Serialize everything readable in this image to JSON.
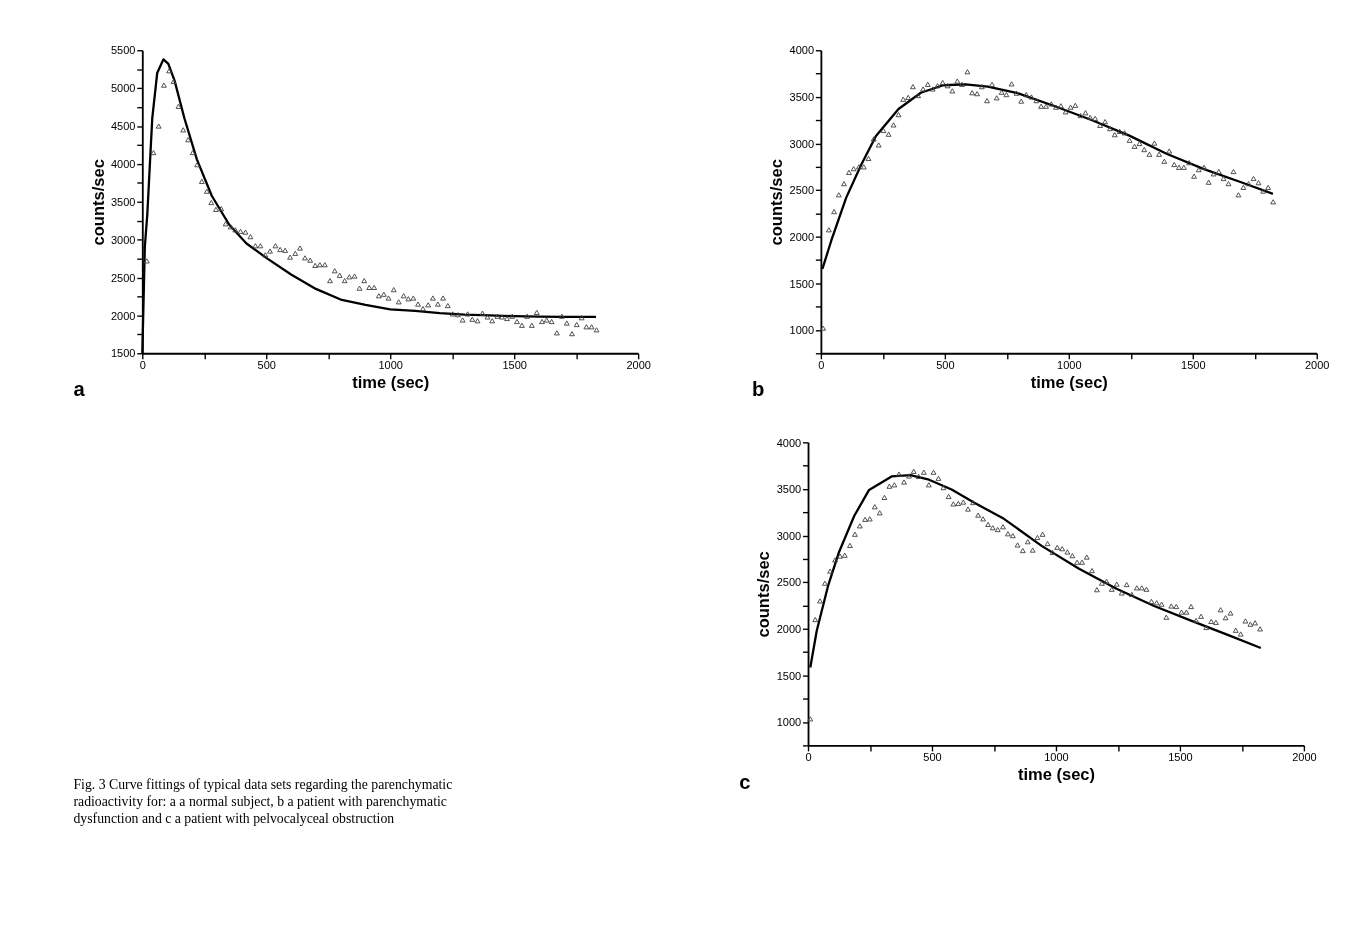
{
  "chart_data": [
    {
      "type": "scatter",
      "xlabel": "time (sec)",
      "ylabel": "counts/sec",
      "annotations": [
        "a"
      ],
      "xlim": [
        0,
        2000
      ],
      "ylim": [
        1500,
        5500
      ],
      "xticks": [
        0,
        {
          "value": 250,
          "label": null
        },
        500,
        {
          "value": 750,
          "label": null
        },
        1000,
        {
          "value": 1250,
          "label": null
        },
        1500,
        {
          "value": 1750,
          "label": null
        },
        2000
      ],
      "yticks": [
        1500,
        {
          "value": 1750,
          "label": null
        },
        2000,
        {
          "value": 2250,
          "label": null
        },
        2500,
        {
          "value": 2750,
          "label": null
        },
        3000,
        {
          "value": 3250,
          "label": null
        },
        3500,
        {
          "value": 3750,
          "label": null
        },
        4000,
        {
          "value": 4250,
          "label": null
        },
        4500,
        {
          "value": 4750,
          "label": null
        },
        5000,
        {
          "value": 5250,
          "label": null
        },
        5500
      ],
      "grid": false,
      "series": [
        {
          "type": "scatter",
          "marker": "triangle",
          "color": "#444444",
          "x": [
            18,
            45,
            66,
            87,
            108,
            126,
            146,
            165,
            185,
            203,
            221,
            240,
            260,
            278,
            297,
            318,
            336,
            356,
            375,
            396,
            416,
            436,
            456,
            476,
            496,
            515,
            537,
            556,
            576,
            596,
            617,
            636,
            656,
            677,
            697,
            716,
            736,
            757,
            776,
            796,
            816,
            835,
            856,
            876,
            895,
            915,
            935,
            954,
            974,
            993,
            1014,
            1034,
            1054,
            1073,
            1093,
            1112,
            1132,
            1153,
            1172,
            1192,
            1213,
            1232,
            1252,
            1273,
            1292,
            1312,
            1331,
            1352,
            1372,
            1392,
            1411,
            1432,
            1451,
            1471,
            1492,
            1511,
            1531,
            1552,
            1571,
            1591,
            1612,
            1631,
            1651,
            1672,
            1692,
            1712,
            1733,
            1752,
            1772,
            1791,
            1812,
            1832
          ],
          "values": [
            2720,
            4150,
            4500,
            5040,
            5230,
            5090,
            4760,
            4450,
            4320,
            4150,
            3990,
            3770,
            3640,
            3490,
            3400,
            3410,
            3210,
            3170,
            3130,
            3110,
            3100,
            3040,
            2920,
            2920,
            2800,
            2850,
            2920,
            2870,
            2860,
            2770,
            2820,
            2890,
            2760,
            2730,
            2660,
            2670,
            2670,
            2460,
            2590,
            2530,
            2460,
            2510,
            2520,
            2360,
            2460,
            2370,
            2370,
            2260,
            2280,
            2230,
            2340,
            2180,
            2260,
            2220,
            2230,
            2150,
            2090,
            2140,
            2230,
            2150,
            2230,
            2130,
            2020,
            2010,
            1940,
            2020,
            1950,
            1930,
            2030,
            1980,
            1930,
            1990,
            1980,
            1960,
            1990,
            1920,
            1870,
            1990,
            1870,
            2040,
            1920,
            1940,
            1920,
            1770,
            1990,
            1900,
            1760,
            1880,
            1970,
            1850,
            1850,
            1810
          ]
        },
        {
          "type": "line",
          "marker": "none",
          "line_style": "solid",
          "color": "#000000",
          "x": [
            0,
            10,
            20,
            40,
            60,
            85,
            105,
            130,
            170,
            220,
            280,
            350,
            420,
            500,
            600,
            700,
            800,
            900,
            1000,
            1100,
            1200,
            1300,
            1400,
            1500,
            1600,
            1700,
            1830
          ],
          "values": [
            1500,
            2900,
            3330,
            4600,
            5200,
            5380,
            5320,
            5100,
            4600,
            4060,
            3580,
            3200,
            2950,
            2760,
            2540,
            2350,
            2210,
            2140,
            2080,
            2060,
            2030,
            2010,
            2000,
            1990,
            1985,
            1980,
            1980
          ]
        }
      ]
    },
    {
      "type": "scatter",
      "xlabel": "time (sec)",
      "ylabel": "counts/sec",
      "annotations": [
        "b"
      ],
      "xlim": [
        0,
        2000
      ],
      "ylim": [
        750,
        4000
      ],
      "xticks": [
        0,
        {
          "value": 250,
          "label": null
        },
        500,
        {
          "value": 750,
          "label": null
        },
        1000,
        {
          "value": 1250,
          "label": null
        },
        1500,
        {
          "value": 1750,
          "label": null
        },
        2000
      ],
      "yticks": [
        {
          "value": 750,
          "label": null
        },
        1000,
        {
          "value": 1250,
          "label": null
        },
        1500,
        {
          "value": 1750,
          "label": null
        },
        2000,
        {
          "value": 2250,
          "label": null
        },
        2500,
        {
          "value": 2750,
          "label": null
        },
        3000,
        {
          "value": 3250,
          "label": null
        },
        3500,
        {
          "value": 3750,
          "label": null
        },
        4000
      ],
      "grid": false,
      "series": [
        {
          "type": "scatter",
          "marker": "triangle",
          "color": "#444444",
          "x": [
            9,
            32,
            53,
            72,
            93,
            113,
            132,
            153,
            173,
            192,
            213,
            233,
            252,
            273,
            293,
            313,
            332,
            352,
            371,
            392,
            412,
            431,
            451,
            470,
            491,
            511,
            530,
            550,
            569,
            591,
            610,
            630,
            649,
            670,
            690,
            709,
            729,
            748,
            769,
            789,
            808,
            828,
            849,
            869,
            888,
            908,
            929,
            948,
            968,
            987,
            1007,
            1026,
            1047,
            1067,
            1086,
            1106,
            1126,
            1146,
            1166,
            1185,
            1205,
            1225,
            1245,
            1265,
            1285,
            1304,
            1325,
            1345,
            1364,
            1385,
            1405,
            1425,
            1444,
            1464,
            1485,
            1505,
            1524,
            1545,
            1564,
            1584,
            1605,
            1624,
            1644,
            1664,
            1684,
            1704,
            1725,
            1745,
            1765,
            1784,
            1804,
            1824
          ],
          "values": [
            1020,
            2075,
            2270,
            2450,
            2570,
            2690,
            2730,
            2750,
            2750,
            2840,
            3050,
            2985,
            3140,
            3100,
            3200,
            3310,
            3475,
            3495,
            3610,
            3515,
            3585,
            3635,
            3585,
            3620,
            3655,
            3620,
            3565,
            3670,
            3635,
            3770,
            3545,
            3535,
            3610,
            3460,
            3635,
            3490,
            3550,
            3525,
            3640,
            3540,
            3455,
            3525,
            3500,
            3460,
            3400,
            3400,
            3425,
            3390,
            3405,
            3340,
            3390,
            3410,
            3300,
            3330,
            3280,
            3270,
            3195,
            3235,
            3160,
            3095,
            3130,
            3115,
            3035,
            2970,
            3000,
            2935,
            2885,
            3005,
            2885,
            2810,
            2920,
            2775,
            2745,
            2745,
            2795,
            2650,
            2720,
            2745,
            2585,
            2675,
            2700,
            2625,
            2570,
            2700,
            2450,
            2530,
            2570,
            2625,
            2580,
            2490,
            2530,
            2375
          ]
        },
        {
          "type": "line",
          "marker": "none",
          "line_style": "solid",
          "color": "#000000",
          "x": [
            6,
            42,
            102,
            162,
            222,
            313,
            403,
            493,
            583,
            673,
            793,
            944,
            1094,
            1244,
            1394,
            1545,
            1695,
            1823
          ],
          "values": [
            1655,
            1960,
            2420,
            2770,
            3080,
            3370,
            3545,
            3625,
            3635,
            3610,
            3540,
            3400,
            3250,
            3085,
            2890,
            2725,
            2585,
            2460
          ]
        }
      ]
    },
    {
      "type": "other",
      "annotations": [
        "Fig. 3 Curve fittings of typical data sets regarding the parenchymatic radioactivity for: a a normal subject, b a patient with parenchymatic dysfunction and c a patient with pelvocalyceal obstruction"
      ]
    },
    {
      "type": "scatter",
      "xlabel": "time (sec)",
      "ylabel": "counts/sec",
      "annotations": [
        "c"
      ],
      "xlim": [
        0,
        2000
      ],
      "ylim": [
        750,
        4000
      ],
      "xticks": [
        0,
        {
          "value": 250,
          "label": null
        },
        500,
        {
          "value": 750,
          "label": null
        },
        1000,
        {
          "value": 1250,
          "label": null
        },
        1500,
        {
          "value": 1750,
          "label": null
        },
        2000
      ],
      "yticks": [
        {
          "value": 750,
          "label": null
        },
        1000,
        {
          "value": 1250,
          "label": null
        },
        1500,
        {
          "value": 1750,
          "label": null
        },
        2000,
        {
          "value": 2250,
          "label": null
        },
        2500,
        {
          "value": 2750,
          "label": null
        },
        3000,
        {
          "value": 3250,
          "label": null
        },
        3500,
        {
          "value": 3750,
          "label": null
        },
        4000
      ],
      "grid": false,
      "series": [
        {
          "type": "scatter",
          "marker": "triangle",
          "color": "#444444",
          "x": [
            9,
            29,
            48,
            68,
            89,
            109,
            129,
            148,
            169,
            189,
            209,
            230,
            249,
            269,
            289,
            308,
            328,
            348,
            367,
            387,
            407,
            426,
            446,
            467,
            487,
            506,
            526,
            546,
            567,
            586,
            606,
            626,
            645,
            665,
            686,
            706,
            726,
            745,
            765,
            786,
            806,
            826,
            845,
            866,
            886,
            906,
            925,
            946,
            966,
            986,
            1005,
            1025,
            1046,
            1066,
            1085,
            1105,
            1124,
            1145,
            1165,
            1185,
            1204,
            1225,
            1245,
            1265,
            1285,
            1306,
            1326,
            1346,
            1365,
            1385,
            1406,
            1426,
            1445,
            1465,
            1485,
            1506,
            1526,
            1545,
            1565,
            1585,
            1606,
            1626,
            1645,
            1664,
            1684,
            1704,
            1725,
            1745,
            1764,
            1784,
            1803,
            1823
          ],
          "values": [
            1035,
            2100,
            2300,
            2490,
            2620,
            2740,
            2780,
            2790,
            2895,
            3015,
            3105,
            3175,
            3180,
            3310,
            3245,
            3410,
            3530,
            3545,
            3660,
            3575,
            3640,
            3690,
            3635,
            3680,
            3545,
            3680,
            3615,
            3515,
            3420,
            3340,
            3345,
            3360,
            3285,
            3355,
            3220,
            3180,
            3120,
            3085,
            3065,
            3095,
            3020,
            3000,
            2900,
            2840,
            2935,
            2845,
            2980,
            3015,
            2915,
            2820,
            2875,
            2860,
            2825,
            2785,
            2715,
            2715,
            2770,
            2625,
            2420,
            2490,
            2510,
            2425,
            2480,
            2385,
            2475,
            2370,
            2440,
            2440,
            2425,
            2295,
            2280,
            2265,
            2125,
            2245,
            2240,
            2180,
            2180,
            2240,
            2090,
            2135,
            2015,
            2080,
            2070,
            2205,
            2120,
            2170,
            1985,
            1945,
            2085,
            2050,
            2065,
            2000
          ]
        },
        {
          "type": "line",
          "marker": "none",
          "line_style": "solid",
          "color": "#000000",
          "x": [
            9,
            35,
            80,
            125,
            186,
            246,
            337,
            413,
            488,
            579,
            669,
            790,
            942,
            1093,
            1244,
            1396,
            1547,
            1698,
            1826
          ],
          "values": [
            1585,
            1980,
            2455,
            2825,
            3210,
            3490,
            3635,
            3650,
            3600,
            3495,
            3355,
            3180,
            2890,
            2645,
            2430,
            2245,
            2085,
            1930,
            1795
          ]
        }
      ]
    }
  ]
}
